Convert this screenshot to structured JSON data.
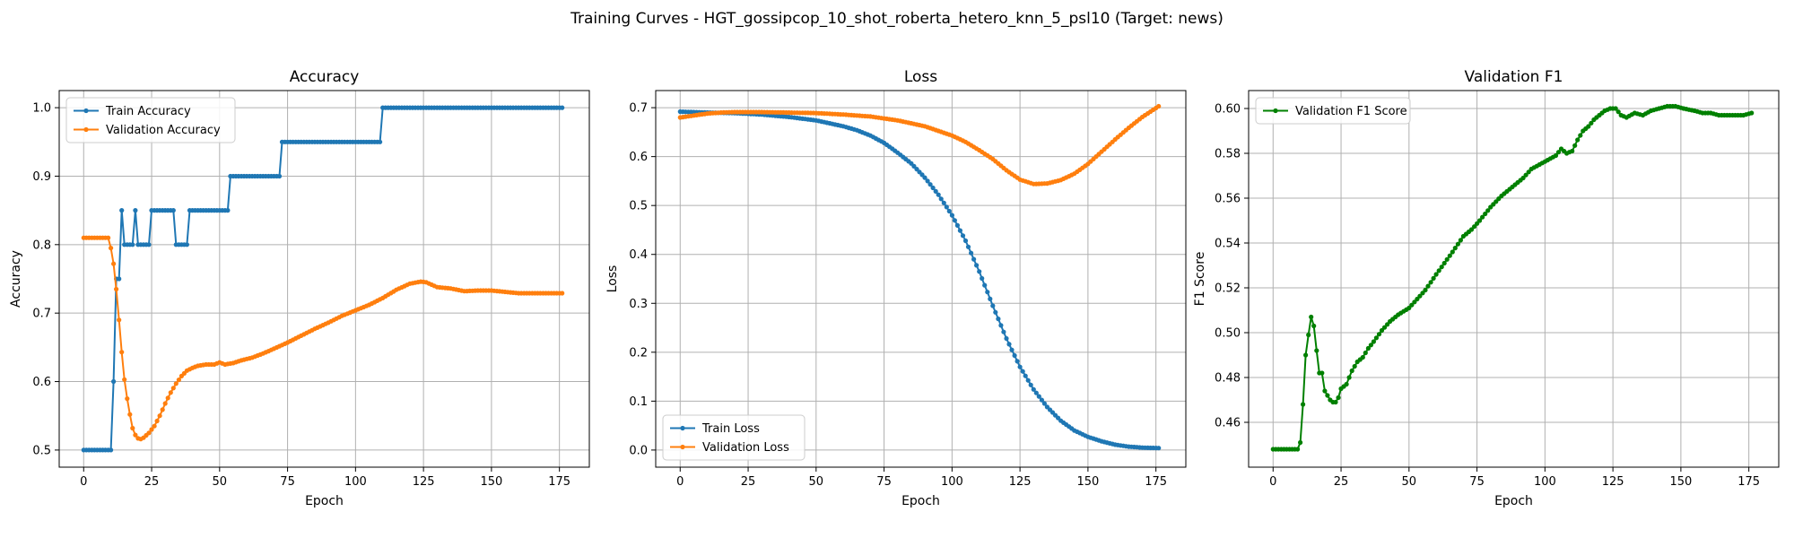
{
  "figure": {
    "suptitle": "Training Curves - HGT_gossipcop_10_shot_roberta_hetero_knn_5_psl10 (Target: news)"
  },
  "chart_data": [
    {
      "type": "line",
      "title": "Accuracy",
      "xlabel": "Epoch",
      "ylabel": "Accuracy",
      "xlim": [
        -9,
        186
      ],
      "ylim": [
        0.475,
        1.025
      ],
      "xticks": [
        0,
        25,
        50,
        75,
        100,
        125,
        150,
        175
      ],
      "yticks": [
        0.5,
        0.6,
        0.7,
        0.8,
        0.9,
        1.0
      ],
      "ytick_labels": [
        "0.5",
        "0.6",
        "0.7",
        "0.8",
        "0.9",
        "1.0"
      ],
      "grid": true,
      "legend_position": "upper-left",
      "series": [
        {
          "name": "Train Accuracy",
          "color": "#1f77b4",
          "segments": [
            [
              0,
              0.5
            ],
            [
              10,
              0.5
            ],
            [
              11,
              0.6
            ],
            [
              12,
              0.75
            ],
            [
              13,
              0.75
            ],
            [
              14,
              0.85
            ],
            [
              15,
              0.8
            ],
            [
              18,
              0.8
            ],
            [
              19,
              0.85
            ],
            [
              20,
              0.8
            ],
            [
              24,
              0.8
            ],
            [
              25,
              0.85
            ],
            [
              33,
              0.85
            ],
            [
              34,
              0.8
            ],
            [
              38,
              0.8
            ],
            [
              39,
              0.85
            ],
            [
              53,
              0.85
            ],
            [
              54,
              0.9
            ],
            [
              72,
              0.9
            ],
            [
              73,
              0.95
            ],
            [
              109,
              0.95
            ],
            [
              110,
              1.0
            ],
            [
              176,
              1.0
            ]
          ]
        },
        {
          "name": "Validation Accuracy",
          "color": "#ff7f0e",
          "points": [
            [
              0,
              0.81
            ],
            [
              9,
              0.81
            ],
            [
              10,
              0.795
            ],
            [
              11,
              0.772
            ],
            [
              12,
              0.735
            ],
            [
              13,
              0.69
            ],
            [
              14,
              0.643
            ],
            [
              15,
              0.603
            ],
            [
              16,
              0.575
            ],
            [
              17,
              0.552
            ],
            [
              18,
              0.532
            ],
            [
              19,
              0.522
            ],
            [
              20,
              0.517
            ],
            [
              21,
              0.516
            ],
            [
              22,
              0.518
            ],
            [
              24,
              0.525
            ],
            [
              26,
              0.535
            ],
            [
              28,
              0.55
            ],
            [
              30,
              0.568
            ],
            [
              32,
              0.584
            ],
            [
              34,
              0.597
            ],
            [
              36,
              0.608
            ],
            [
              38,
              0.616
            ],
            [
              40,
              0.62
            ],
            [
              42,
              0.623
            ],
            [
              45,
              0.625
            ],
            [
              48,
              0.625
            ],
            [
              50,
              0.628
            ],
            [
              52,
              0.625
            ],
            [
              55,
              0.627
            ],
            [
              58,
              0.631
            ],
            [
              62,
              0.635
            ],
            [
              66,
              0.641
            ],
            [
              70,
              0.648
            ],
            [
              75,
              0.657
            ],
            [
              80,
              0.667
            ],
            [
              85,
              0.677
            ],
            [
              90,
              0.686
            ],
            [
              95,
              0.696
            ],
            [
              100,
              0.704
            ],
            [
              105,
              0.712
            ],
            [
              110,
              0.722
            ],
            [
              115,
              0.734
            ],
            [
              120,
              0.743
            ],
            [
              124,
              0.746
            ],
            [
              126,
              0.745
            ],
            [
              130,
              0.738
            ],
            [
              135,
              0.736
            ],
            [
              140,
              0.732
            ],
            [
              145,
              0.733
            ],
            [
              150,
              0.733
            ],
            [
              155,
              0.731
            ],
            [
              160,
              0.729
            ],
            [
              165,
              0.729
            ],
            [
              170,
              0.729
            ],
            [
              176,
              0.729
            ]
          ]
        }
      ]
    },
    {
      "type": "line",
      "title": "Loss",
      "xlabel": "Epoch",
      "ylabel": "Loss",
      "xlim": [
        -9,
        186
      ],
      "ylim": [
        -0.035,
        0.735
      ],
      "xticks": [
        0,
        25,
        50,
        75,
        100,
        125,
        150,
        175
      ],
      "yticks": [
        0.0,
        0.1,
        0.2,
        0.3,
        0.4,
        0.5,
        0.6,
        0.7
      ],
      "ytick_labels": [
        "0.0",
        "0.1",
        "0.2",
        "0.3",
        "0.4",
        "0.5",
        "0.6",
        "0.7"
      ],
      "grid": true,
      "legend_position": "lower-left",
      "series": [
        {
          "name": "Train Loss",
          "color": "#1f77b4",
          "points": [
            [
              0,
              0.692
            ],
            [
              10,
              0.69
            ],
            [
              20,
              0.689
            ],
            [
              30,
              0.686
            ],
            [
              40,
              0.681
            ],
            [
              50,
              0.674
            ],
            [
              60,
              0.662
            ],
            [
              65,
              0.654
            ],
            [
              70,
              0.643
            ],
            [
              75,
              0.628
            ],
            [
              80,
              0.608
            ],
            [
              85,
              0.586
            ],
            [
              90,
              0.557
            ],
            [
              95,
              0.522
            ],
            [
              100,
              0.48
            ],
            [
              105,
              0.428
            ],
            [
              110,
              0.365
            ],
            [
              115,
              0.295
            ],
            [
              120,
              0.228
            ],
            [
              125,
              0.17
            ],
            [
              130,
              0.124
            ],
            [
              135,
              0.088
            ],
            [
              140,
              0.06
            ],
            [
              145,
              0.04
            ],
            [
              150,
              0.027
            ],
            [
              155,
              0.018
            ],
            [
              160,
              0.011
            ],
            [
              165,
              0.007
            ],
            [
              170,
              0.005
            ],
            [
              176,
              0.004
            ]
          ]
        },
        {
          "name": "Validation Loss",
          "color": "#ff7f0e",
          "points": [
            [
              0,
              0.68
            ],
            [
              5,
              0.684
            ],
            [
              10,
              0.688
            ],
            [
              15,
              0.69
            ],
            [
              20,
              0.691
            ],
            [
              25,
              0.691
            ],
            [
              30,
              0.691
            ],
            [
              40,
              0.69
            ],
            [
              50,
              0.689
            ],
            [
              60,
              0.686
            ],
            [
              70,
              0.682
            ],
            [
              80,
              0.674
            ],
            [
              90,
              0.662
            ],
            [
              100,
              0.643
            ],
            [
              105,
              0.63
            ],
            [
              110,
              0.613
            ],
            [
              115,
              0.595
            ],
            [
              120,
              0.572
            ],
            [
              125,
              0.553
            ],
            [
              130,
              0.544
            ],
            [
              135,
              0.545
            ],
            [
              140,
              0.552
            ],
            [
              145,
              0.565
            ],
            [
              150,
              0.585
            ],
            [
              155,
              0.61
            ],
            [
              160,
              0.635
            ],
            [
              165,
              0.659
            ],
            [
              170,
              0.681
            ],
            [
              176,
              0.703
            ]
          ]
        }
      ]
    },
    {
      "type": "line",
      "title": "Validation F1",
      "xlabel": "Epoch",
      "ylabel": "F1 Score",
      "xlim": [
        -9,
        186
      ],
      "ylim": [
        0.44,
        0.608
      ],
      "xticks": [
        0,
        25,
        50,
        75,
        100,
        125,
        150,
        175
      ],
      "yticks": [
        0.46,
        0.48,
        0.5,
        0.52,
        0.54,
        0.56,
        0.58,
        0.6
      ],
      "ytick_labels": [
        "0.46",
        "0.48",
        "0.50",
        "0.52",
        "0.54",
        "0.56",
        "0.58",
        "0.60"
      ],
      "grid": true,
      "legend_position": "upper-left",
      "series": [
        {
          "name": "Validation F1 Score",
          "color": "#008000",
          "points": [
            [
              0,
              0.448
            ],
            [
              9,
              0.448
            ],
            [
              10,
              0.451
            ],
            [
              11,
              0.468
            ],
            [
              12,
              0.49
            ],
            [
              13,
              0.499
            ],
            [
              14,
              0.507
            ],
            [
              15,
              0.503
            ],
            [
              16,
              0.492
            ],
            [
              17,
              0.482
            ],
            [
              18,
              0.482
            ],
            [
              19,
              0.474
            ],
            [
              20,
              0.472
            ],
            [
              21,
              0.47
            ],
            [
              22,
              0.469
            ],
            [
              23,
              0.469
            ],
            [
              24,
              0.471
            ],
            [
              25,
              0.475
            ],
            [
              27,
              0.477
            ],
            [
              29,
              0.483
            ],
            [
              31,
              0.487
            ],
            [
              33,
              0.489
            ],
            [
              35,
              0.493
            ],
            [
              37,
              0.496
            ],
            [
              40,
              0.501
            ],
            [
              43,
              0.505
            ],
            [
              46,
              0.508
            ],
            [
              50,
              0.511
            ],
            [
              53,
              0.515
            ],
            [
              56,
              0.519
            ],
            [
              60,
              0.526
            ],
            [
              63,
              0.531
            ],
            [
              66,
              0.536
            ],
            [
              70,
              0.543
            ],
            [
              73,
              0.546
            ],
            [
              76,
              0.55
            ],
            [
              80,
              0.556
            ],
            [
              84,
              0.561
            ],
            [
              88,
              0.565
            ],
            [
              92,
              0.569
            ],
            [
              95,
              0.573
            ],
            [
              98,
              0.575
            ],
            [
              101,
              0.577
            ],
            [
              104,
              0.579
            ],
            [
              106,
              0.582
            ],
            [
              108,
              0.58
            ],
            [
              110,
              0.581
            ],
            [
              112,
              0.586
            ],
            [
              114,
              0.59
            ],
            [
              116,
              0.592
            ],
            [
              118,
              0.595
            ],
            [
              120,
              0.597
            ],
            [
              122,
              0.599
            ],
            [
              124,
              0.6
            ],
            [
              126,
              0.6
            ],
            [
              128,
              0.597
            ],
            [
              130,
              0.596
            ],
            [
              133,
              0.598
            ],
            [
              136,
              0.597
            ],
            [
              139,
              0.599
            ],
            [
              142,
              0.6
            ],
            [
              145,
              0.601
            ],
            [
              148,
              0.601
            ],
            [
              151,
              0.6
            ],
            [
              155,
              0.599
            ],
            [
              158,
              0.598
            ],
            [
              161,
              0.598
            ],
            [
              164,
              0.597
            ],
            [
              167,
              0.597
            ],
            [
              170,
              0.597
            ],
            [
              173,
              0.597
            ],
            [
              176,
              0.598
            ]
          ]
        }
      ]
    }
  ]
}
